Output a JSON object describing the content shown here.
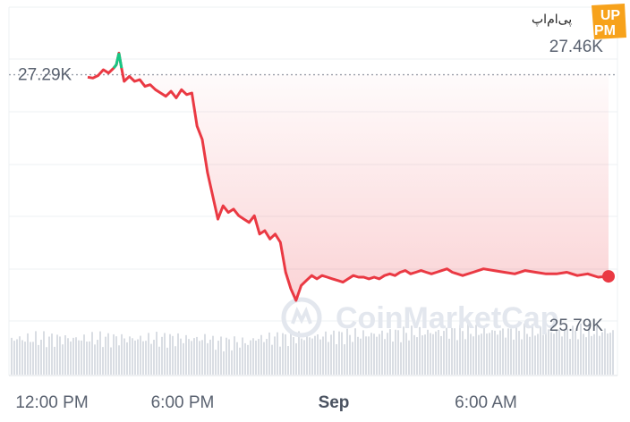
{
  "chart_data": {
    "type": "line",
    "x_ticks": [
      "12:00 PM",
      "6:00 PM",
      "Sep",
      "6:00 AM"
    ],
    "y_range": [
      25790,
      27460
    ],
    "y_ticks": [
      "27.46K",
      "25.79K"
    ],
    "reference_value": 27290,
    "reference_label": "27.29K",
    "colors": {
      "above": "#16c784",
      "below": "#ea3943",
      "volume": "#d9dde3"
    },
    "series": [
      {
        "x": [
          0.0,
          0.01,
          0.02,
          0.03,
          0.04,
          0.05,
          0.055,
          0.06,
          0.065,
          0.07,
          0.08,
          0.09,
          0.1,
          0.11,
          0.12,
          0.13,
          0.14,
          0.15,
          0.16,
          0.17,
          0.18,
          0.19,
          0.2,
          0.21,
          0.22,
          0.23,
          0.24,
          0.25,
          0.26,
          0.27,
          0.28,
          0.29,
          0.3,
          0.31,
          0.32,
          0.33,
          0.34,
          0.35,
          0.36,
          0.37,
          0.38,
          0.39,
          0.4,
          0.41,
          0.42,
          0.43,
          0.44,
          0.45,
          0.46,
          0.47,
          0.48,
          0.49,
          0.5,
          0.51,
          0.52,
          0.53,
          0.54,
          0.55,
          0.56,
          0.57,
          0.58,
          0.59,
          0.6,
          0.61,
          0.62,
          0.63,
          0.64,
          0.65,
          0.66,
          0.67,
          0.68,
          0.69,
          0.7,
          0.72,
          0.74,
          0.76,
          0.78,
          0.8,
          0.82,
          0.84,
          0.86,
          0.88,
          0.9,
          0.92,
          0.94,
          0.96,
          0.98,
          1.0
        ],
        "y": [
          27275,
          27270,
          27285,
          27320,
          27300,
          27330,
          27350,
          27420,
          27330,
          27250,
          27280,
          27250,
          27260,
          27220,
          27230,
          27200,
          27180,
          27160,
          27190,
          27150,
          27200,
          27170,
          27180,
          26980,
          26900,
          26700,
          26560,
          26420,
          26500,
          26460,
          26480,
          26440,
          26420,
          26400,
          26440,
          26330,
          26350,
          26300,
          26330,
          26280,
          26100,
          26000,
          25930,
          26020,
          26050,
          26080,
          26060,
          26080,
          26070,
          26060,
          26050,
          26040,
          26060,
          26080,
          26070,
          26070,
          26060,
          26070,
          26060,
          26080,
          26090,
          26080,
          26100,
          26110,
          26090,
          26100,
          26110,
          26100,
          26090,
          26100,
          26110,
          26120,
          26100,
          26080,
          26100,
          26120,
          26110,
          26100,
          26090,
          26110,
          26100,
          26090,
          26090,
          26100,
          26080,
          26090,
          26070,
          26075
        ]
      }
    ],
    "xlabel": "",
    "ylabel": ""
  },
  "watermark": "CoinMarketCap",
  "site_logo": "پی‌ام‌اپ",
  "badge": {
    "top": "UP",
    "bottom": "PM",
    "color": "#f7a21b"
  }
}
